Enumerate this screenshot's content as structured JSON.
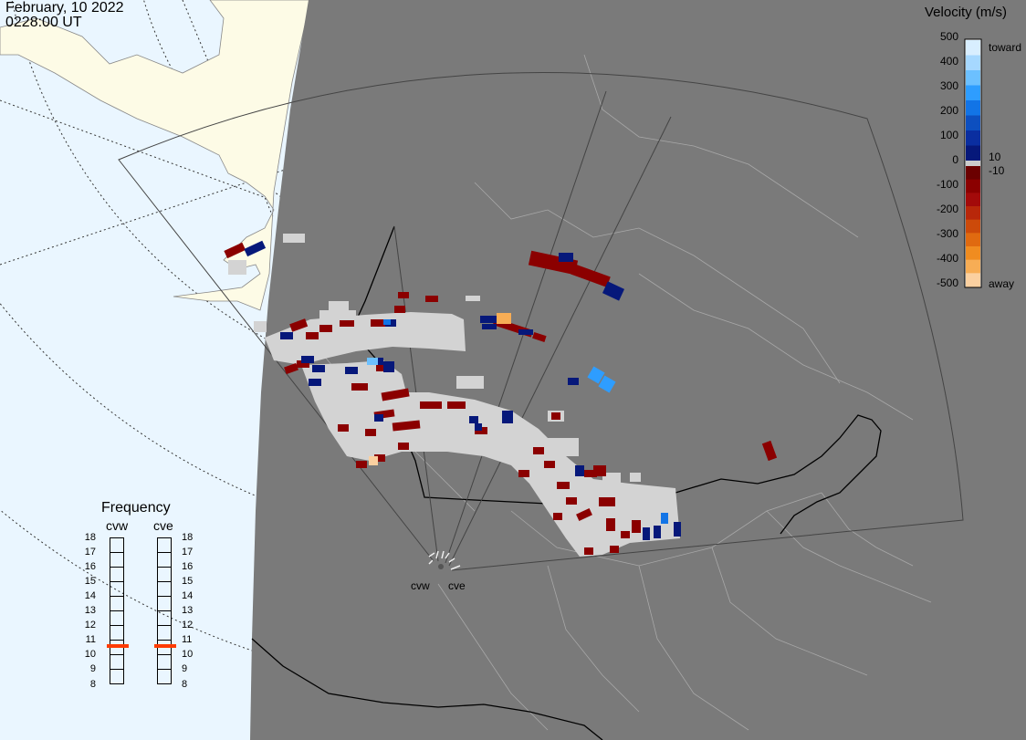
{
  "header": {
    "date": "February, 10 2022",
    "time": "0228:00 UT"
  },
  "colorbar": {
    "title": "Velocity (m/s)",
    "ticks": [
      "500",
      "400",
      "300",
      "200",
      "100",
      "0",
      "-100",
      "-200",
      "-300",
      "-400",
      "-500"
    ],
    "toward_label": "toward",
    "away_label": "away",
    "threshold_pos": "10",
    "threshold_neg": "-10",
    "colors_toward": [
      "#d8eeff",
      "#a6d8ff",
      "#6cc0ff",
      "#2e9dff",
      "#1274e6",
      "#0d4fbf",
      "#0a2ea0",
      "#06187a"
    ],
    "colors_away": [
      "#6b0000",
      "#8b0000",
      "#a30a0a",
      "#b8270a",
      "#cc4a0a",
      "#e06a10",
      "#f08c20",
      "#f7ad55",
      "#fbd0a0"
    ],
    "gap_color": "#cccccc"
  },
  "frequency": {
    "title": "Frequency",
    "radars": [
      "cvw",
      "cve"
    ],
    "levels": [
      "18",
      "17",
      "16",
      "15",
      "14",
      "13",
      "12",
      "11",
      "10",
      "9",
      "8"
    ],
    "selected": [
      11,
      11
    ],
    "marker_color": "#ff3b00"
  },
  "sites": {
    "cvw": "cvw",
    "cve": "cve"
  },
  "map_colors": {
    "ocean": "#eaf6ff",
    "land": "#fdfbe6",
    "night": "#7a7a7a",
    "scatter_grey": "#d3d3d3",
    "border": "#000000",
    "province": "#b0b0b0",
    "fov": "#444444"
  }
}
